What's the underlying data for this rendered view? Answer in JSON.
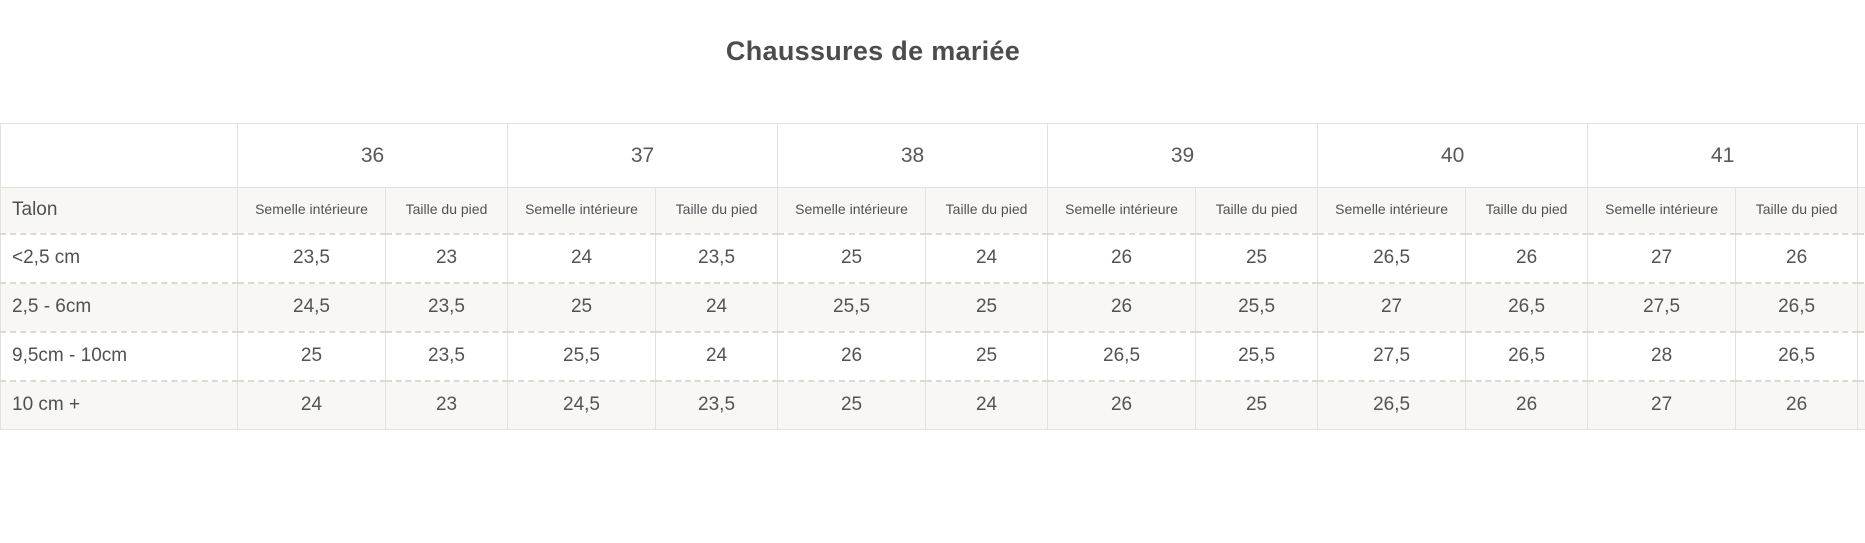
{
  "title": "Chaussures de mariée",
  "table": {
    "sizes": [
      "36",
      "37",
      "38",
      "39",
      "40",
      "41"
    ],
    "row_header": "Talon",
    "col_insole": "Semelle intérieure",
    "col_foot": "Taille du pied",
    "rows": [
      {
        "label": "<2,5 cm",
        "values": [
          "23,5",
          "23",
          "24",
          "23,5",
          "25",
          "24",
          "26",
          "25",
          "26,5",
          "26",
          "27",
          "26"
        ]
      },
      {
        "label": "2,5 - 6cm",
        "values": [
          "24,5",
          "23,5",
          "25",
          "24",
          "25,5",
          "25",
          "26",
          "25,5",
          "27",
          "26,5",
          "27,5",
          "26,5"
        ]
      },
      {
        "label": "9,5cm - 10cm",
        "values": [
          "25",
          "23,5",
          "25,5",
          "24",
          "26",
          "25",
          "26,5",
          "25,5",
          "27,5",
          "26,5",
          "28",
          "26,5"
        ]
      },
      {
        "label": "10 cm +",
        "values": [
          "24",
          "23",
          "24,5",
          "23,5",
          "25",
          "24",
          "26",
          "25",
          "26,5",
          "26",
          "27",
          "26"
        ]
      }
    ]
  },
  "colors": {
    "page_bg": "#ffffff",
    "stripe_bg": "#f8f7f4",
    "grid_line": "#e3e2df",
    "dashed_line": "#ded9d0",
    "text": "#515254",
    "title_text": "#4b4c4e"
  }
}
